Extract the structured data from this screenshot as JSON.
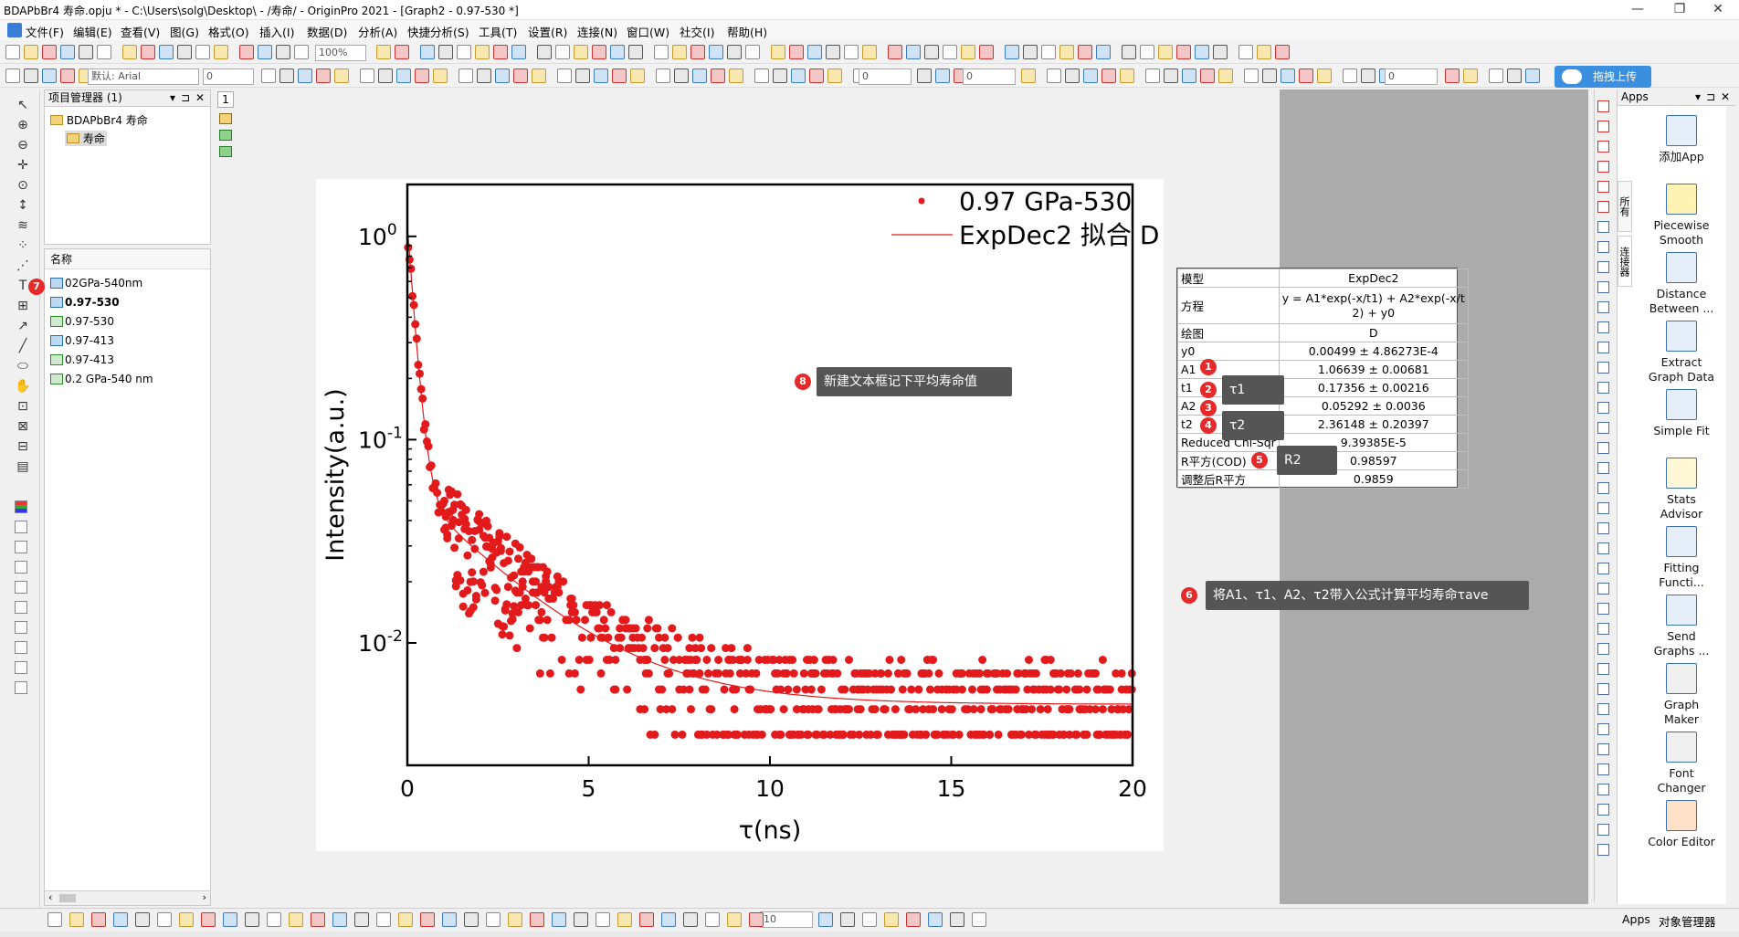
{
  "window": {
    "title": "BDAPbBr4 寿命.opju * - C:\\Users\\solg\\Desktop\\ - /寿命/ - OriginPro 2021 - [Graph2 - 0.97-530 *]"
  },
  "menu": [
    "文件(F)",
    "编辑(E)",
    "查看(V)",
    "图(G)",
    "格式(O)",
    "插入(I)",
    "数据(D)",
    "分析(A)",
    "快捷分析(S)",
    "工具(T)",
    "设置(R)",
    "连接(N)",
    "窗口(W)",
    "社交(I)",
    "帮助(H)"
  ],
  "toolbar": {
    "zoom": "100%",
    "font": "默认: Arial",
    "font_size": "0",
    "line_width": "0",
    "line_width2": "0",
    "angle": "0",
    "stepper": "10",
    "upload_label": "拖拽上传"
  },
  "project_manager": {
    "title": "项目管理器 (1)",
    "root": "BDAPbBr4 寿命",
    "folder": "寿命"
  },
  "names_panel": {
    "header": "名称",
    "items": [
      {
        "label": "02GPa-540nm",
        "type": "graph",
        "bold": false
      },
      {
        "label": "0.97-530",
        "type": "graph",
        "bold": true
      },
      {
        "label": "0.97-530",
        "type": "book",
        "bold": false
      },
      {
        "label": "0.97-413",
        "type": "graph",
        "bold": false
      },
      {
        "label": "0.97-413",
        "type": "book",
        "bold": false
      },
      {
        "label": "0.2 GPa-540 nm",
        "type": "book",
        "bold": false
      }
    ]
  },
  "page_number": "1",
  "chart_data": {
    "type": "scatter",
    "x_label": "τ(ns)",
    "y_label": "Intensity(a.u.)",
    "x_range": [
      0,
      20
    ],
    "x_ticks": [
      "0",
      "5",
      "10",
      "15",
      "20"
    ],
    "y_scale": "log",
    "y_range": [
      0.0025,
      1.8
    ],
    "y_tick_values": [
      1,
      0.1,
      0.01
    ],
    "y_tick_bases": [
      "10",
      "10",
      "10"
    ],
    "y_tick_exponents": [
      "0",
      "-1",
      "-2"
    ],
    "legend": {
      "placement": "top-right",
      "scatter_label": "0.97 GPa-530",
      "fit_label": "ExpDec2 拟合 D"
    },
    "series": [
      {
        "name": "0.97 GPa-530",
        "type": "scatter",
        "color": "#e31a1c",
        "model": "data"
      },
      {
        "name": "ExpDec2 拟合 D",
        "type": "line",
        "color": "#e31a1c",
        "model": {
          "y0": 0.00499,
          "A1": 1.06639,
          "t1": 0.17356,
          "A2": 0.05292,
          "t2": 2.36148
        }
      }
    ]
  },
  "fit_table": {
    "rows": [
      {
        "label": "模型",
        "value": "ExpDec2"
      },
      {
        "label": "方程",
        "value": "y = A1*exp(-x/t1) + A2*exp(-x/t",
        "value2": "2) + y0"
      },
      {
        "label": "绘图",
        "value": "D"
      },
      {
        "label": "y0",
        "value": "0.00499 ± 4.86273E-4"
      },
      {
        "label": "A1",
        "value": "1.06639 ± 0.00681"
      },
      {
        "label": "t1",
        "value": "0.17356 ± 0.00216"
      },
      {
        "label": "A2",
        "value": "0.05292 ± 0.0036"
      },
      {
        "label": "t2",
        "value": "2.36148 ± 0.20397"
      },
      {
        "label": "Reduced Chi-Sqr",
        "value": "9.39385E-5"
      },
      {
        "label": "R平方(COD)",
        "value": "0.98597"
      },
      {
        "label": "调整后R平方",
        "value": "0.9859"
      }
    ]
  },
  "annotations": {
    "dots": [
      "1",
      "2",
      "3",
      "4",
      "5",
      "6",
      "7",
      "8"
    ],
    "tau1": "τ1",
    "tau2": "τ2",
    "r2": "R2",
    "note8": "新建文本框记下平均寿命值",
    "note6": "将A1、τ1、A2、τ2带入公式计算平均寿命τave"
  },
  "apps_panel": {
    "title": "Apps",
    "items": [
      "添加App",
      "Piecewise\nSmooth",
      "Distance\nBetween ...",
      "Extract\nGraph Data",
      "Simple Fit",
      "Stats\nAdvisor",
      "Fitting\nFuncti...",
      "Send\nGraphs ...",
      "Graph\nMaker",
      "Font\nChanger",
      "Color Editor"
    ],
    "side_tabs": [
      "所有",
      "连接器"
    ]
  },
  "bottom_tabs": [
    "Apps",
    "对象管理器"
  ]
}
